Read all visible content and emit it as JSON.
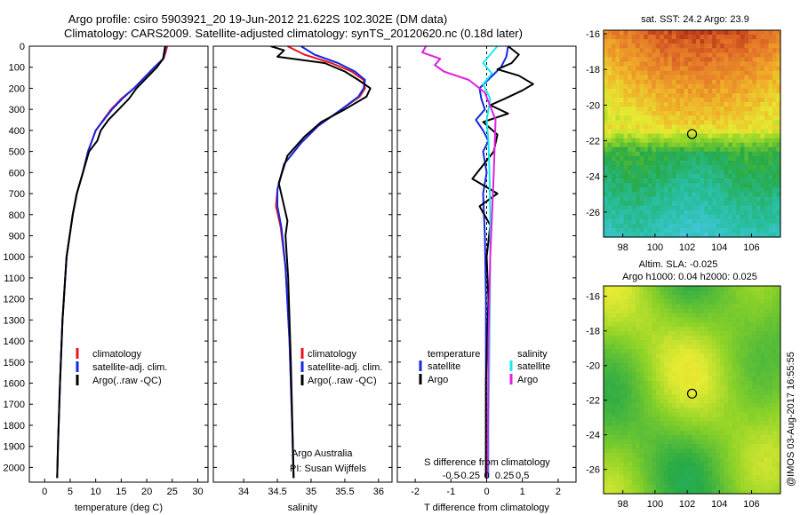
{
  "figure": {
    "title_line1": "Argo profile: csiro 5903921_20 19-Jun-2012 21.622S 102.302E (DM data)",
    "title_line2": "Climatology: CARS2009. Satellite-adjusted climatology: synTS_20120620.nc (0.18d later)",
    "watermark": "@IMOS 03-Aug-2017 16:55:55"
  },
  "colors": {
    "climatology": "#e8141c",
    "satellite": "#1428e0",
    "argo": "#000000",
    "satellite_salinity": "#18e8f0",
    "argo_salinity": "#e020e0",
    "sst_marker": "#000000"
  },
  "chart_data": [
    {
      "id": "temperature",
      "type": "line",
      "xlabel": "temperature (deg C)",
      "ylabel": "",
      "xlim": [
        -3,
        32
      ],
      "ylim": [
        2070,
        0
      ],
      "xticks": [
        0,
        5,
        10,
        15,
        20,
        25,
        30
      ],
      "xtick_labels": [
        "0",
        "5",
        "10",
        "15",
        "20",
        "25",
        "30"
      ],
      "yticks": [
        0,
        100,
        200,
        300,
        400,
        500,
        600,
        700,
        800,
        900,
        1000,
        1100,
        1200,
        1300,
        1400,
        1500,
        1600,
        1700,
        1800,
        1900,
        2000
      ],
      "ytick_labels": [
        "0",
        "100",
        "200",
        "300",
        "400",
        "500",
        "600",
        "700",
        "800",
        "900",
        "1000",
        "1100",
        "1200",
        "1300",
        "1400",
        "1500",
        "1600",
        "1700",
        "1800",
        "1900",
        "2000"
      ],
      "legend": [
        "climatology",
        "satellite-adj. clim.",
        "Argo(..raw -QC)"
      ],
      "series": [
        {
          "name": "climatology",
          "x": [
            24.0,
            23.7,
            23.3,
            21.5,
            19.5,
            17.5,
            15.0,
            13.0,
            11.5,
            10.0,
            8.5,
            7.5,
            6.3,
            5.5,
            4.3,
            3.5,
            3.0,
            2.6,
            2.45
          ],
          "y": [
            0,
            30,
            60,
            100,
            150,
            200,
            250,
            300,
            350,
            400,
            500,
            600,
            700,
            800,
            1000,
            1300,
            1600,
            1900,
            2050
          ]
        },
        {
          "name": "satellite-adj. clim.",
          "x": [
            23.7,
            23.5,
            23.2,
            21.5,
            19.5,
            17.5,
            15.2,
            13.2,
            11.6,
            10.0,
            8.5,
            7.5,
            6.3,
            5.5,
            4.3,
            3.5,
            3.0,
            2.6,
            2.45
          ],
          "y": [
            0,
            30,
            60,
            100,
            150,
            200,
            250,
            300,
            350,
            400,
            500,
            600,
            700,
            800,
            1000,
            1300,
            1600,
            1900,
            2050
          ]
        },
        {
          "name": "Argo(..raw -QC)",
          "x": [
            23.6,
            23.4,
            23.2,
            22.0,
            20.0,
            18.0,
            16.5,
            14.5,
            12.5,
            11.0,
            10.3,
            8.7,
            7.5,
            6.3,
            5.5,
            4.3,
            3.5,
            3.0,
            2.6,
            2.45
          ],
          "y": [
            0,
            30,
            60,
            100,
            150,
            200,
            250,
            300,
            350,
            400,
            450,
            500,
            600,
            700,
            800,
            1000,
            1300,
            1600,
            1900,
            2050
          ]
        }
      ]
    },
    {
      "id": "salinity",
      "type": "line",
      "xlabel": "salinity",
      "ylabel": "",
      "xlim": [
        33.55,
        36.2
      ],
      "ylim": [
        2070,
        0
      ],
      "xticks": [
        34,
        34.5,
        35,
        35.5,
        36
      ],
      "xtick_labels": [
        "34",
        "34.5",
        "35",
        "35.5",
        "36"
      ],
      "legend": [
        "climatology",
        "satellite-adj. clim.",
        "Argo(..raw -QC)"
      ],
      "annotation_line1": "Argo Australia",
      "annotation_line2": "PI: Susan Wijffels",
      "series": [
        {
          "name": "climatology",
          "x": [
            34.65,
            34.9,
            35.3,
            35.6,
            35.78,
            35.8,
            35.72,
            35.45,
            35.1,
            34.85,
            34.6,
            34.5,
            34.48,
            34.55,
            34.62,
            34.68,
            34.72,
            34.74
          ],
          "y": [
            0,
            40,
            80,
            120,
            160,
            200,
            240,
            300,
            380,
            460,
            560,
            680,
            760,
            860,
            1050,
            1400,
            1800,
            2050
          ]
        },
        {
          "name": "satellite-adj. clim.",
          "x": [
            34.85,
            35.05,
            35.4,
            35.65,
            35.8,
            35.78,
            35.7,
            35.45,
            35.1,
            34.85,
            34.6,
            34.5,
            34.5,
            34.56,
            34.62,
            34.68,
            34.72,
            34.74
          ],
          "y": [
            0,
            40,
            80,
            120,
            160,
            200,
            240,
            300,
            380,
            460,
            560,
            680,
            760,
            860,
            1050,
            1400,
            1800,
            2050
          ]
        },
        {
          "name": "Argo(..raw -QC)",
          "x": [
            34.4,
            34.6,
            34.5,
            35.2,
            35.5,
            35.7,
            35.88,
            35.82,
            35.5,
            35.15,
            34.9,
            34.65,
            34.52,
            34.6,
            34.65,
            34.62,
            34.66,
            34.7,
            34.73,
            34.74
          ],
          "y": [
            0,
            20,
            50,
            80,
            120,
            160,
            200,
            240,
            300,
            360,
            430,
            520,
            650,
            760,
            830,
            900,
            1100,
            1500,
            1900,
            2050
          ]
        }
      ]
    },
    {
      "id": "differences",
      "type": "line",
      "xlabel": "T difference from climatology",
      "top_label": "S difference from climatology",
      "xlim": [
        -2.5,
        2.5
      ],
      "ylim": [
        2070,
        0
      ],
      "xticks": [
        -2,
        -1,
        0,
        1,
        2
      ],
      "xtick_labels": [
        "-2",
        "-1",
        "0",
        "1",
        "2"
      ],
      "top_ticks": [
        -0.5,
        -0.25,
        0,
        0.25,
        0.5
      ],
      "top_tick_labels": [
        "-0.5",
        "-0.25",
        "0",
        "0.25",
        "0.5"
      ],
      "top_tick_scale": 0.3,
      "legend_title_left": "temperature",
      "legend_title_right": "salinity",
      "legend_left": [
        "satellite",
        "Argo"
      ],
      "legend_right": [
        "satellite",
        "Argo"
      ],
      "series": [
        {
          "name": "temperature satellite",
          "x": [
            0.6,
            0.55,
            0.4,
            0.1,
            -0.2,
            -0.15,
            -0.05,
            -0.3,
            -0.1,
            0.05,
            -0.1,
            -0.05,
            0.0,
            -0.1,
            -0.05,
            -0.02,
            -0.02,
            -0.02
          ],
          "y": [
            0,
            50,
            100,
            150,
            200,
            250,
            300,
            350,
            400,
            450,
            500,
            550,
            600,
            700,
            900,
            1200,
            1600,
            2050
          ]
        },
        {
          "name": "temperature Argo",
          "x": [
            0.6,
            0.9,
            0.7,
            0.3,
            0.9,
            1.3,
            1.0,
            0.5,
            0.1,
            0.6,
            -0.1,
            0.3,
            0.2,
            -0.4,
            0.3,
            -0.2,
            0.1,
            0.0,
            0.05,
            -0.02,
            -0.02
          ],
          "y": [
            0,
            40,
            80,
            110,
            140,
            180,
            210,
            250,
            280,
            320,
            360,
            420,
            500,
            630,
            700,
            760,
            850,
            1000,
            1200,
            1600,
            2050
          ]
        },
        {
          "name": "salinity satellite",
          "x": [
            0.3,
            0.1,
            -0.1,
            0.15,
            -0.1,
            0.1,
            0.0,
            0.05,
            0.08,
            0.1,
            0.1,
            0.08,
            0.05,
            0.05
          ],
          "y": [
            0,
            40,
            80,
            130,
            180,
            250,
            350,
            450,
            600,
            800,
            1000,
            1400,
            1800,
            2050
          ]
        },
        {
          "name": "salinity Argo",
          "x": [
            -1.7,
            -1.8,
            -1.3,
            -1.45,
            -1.2,
            -0.5,
            -0.05,
            0.25,
            0.2,
            0.15,
            0.1,
            0.05,
            0.03
          ],
          "y": [
            0,
            30,
            60,
            90,
            120,
            160,
            220,
            350,
            600,
            800,
            1000,
            1400,
            2050
          ]
        }
      ]
    },
    {
      "id": "sst_map",
      "type": "heatmap",
      "title": "sat. SST: 24.2  Argo: 23.9",
      "xlim": [
        96.8,
        107.8
      ],
      "ylim": [
        -27.4,
        -15.8
      ],
      "xticks": [
        98,
        100,
        102,
        104,
        106
      ],
      "xtick_labels": [
        "98",
        "100",
        "102",
        "104",
        "106"
      ],
      "yticks": [
        -16,
        -18,
        -20,
        -22,
        -24,
        -26
      ],
      "ytick_labels": [
        "-16",
        "-18",
        "-20",
        "-22",
        "-24",
        "-26"
      ],
      "argo_position": {
        "lon": 102.302,
        "lat": -21.622
      }
    },
    {
      "id": "sla_map",
      "type": "heatmap",
      "title_line1": "Altim. SLA: -0.025",
      "title_line2": "Argo h1000: 0.04  h2000: 0.025",
      "xlim": [
        96.8,
        107.8
      ],
      "ylim": [
        -27.4,
        -15.4
      ],
      "xticks": [
        98,
        100,
        102,
        104,
        106
      ],
      "xtick_labels": [
        "98",
        "100",
        "102",
        "104",
        "106"
      ],
      "yticks": [
        -16,
        -18,
        -20,
        -22,
        -24,
        -26
      ],
      "ytick_labels": [
        "-16",
        "-18",
        "-20",
        "-22",
        "-24",
        "-26"
      ],
      "argo_position": {
        "lon": 102.302,
        "lat": -21.622
      }
    }
  ]
}
